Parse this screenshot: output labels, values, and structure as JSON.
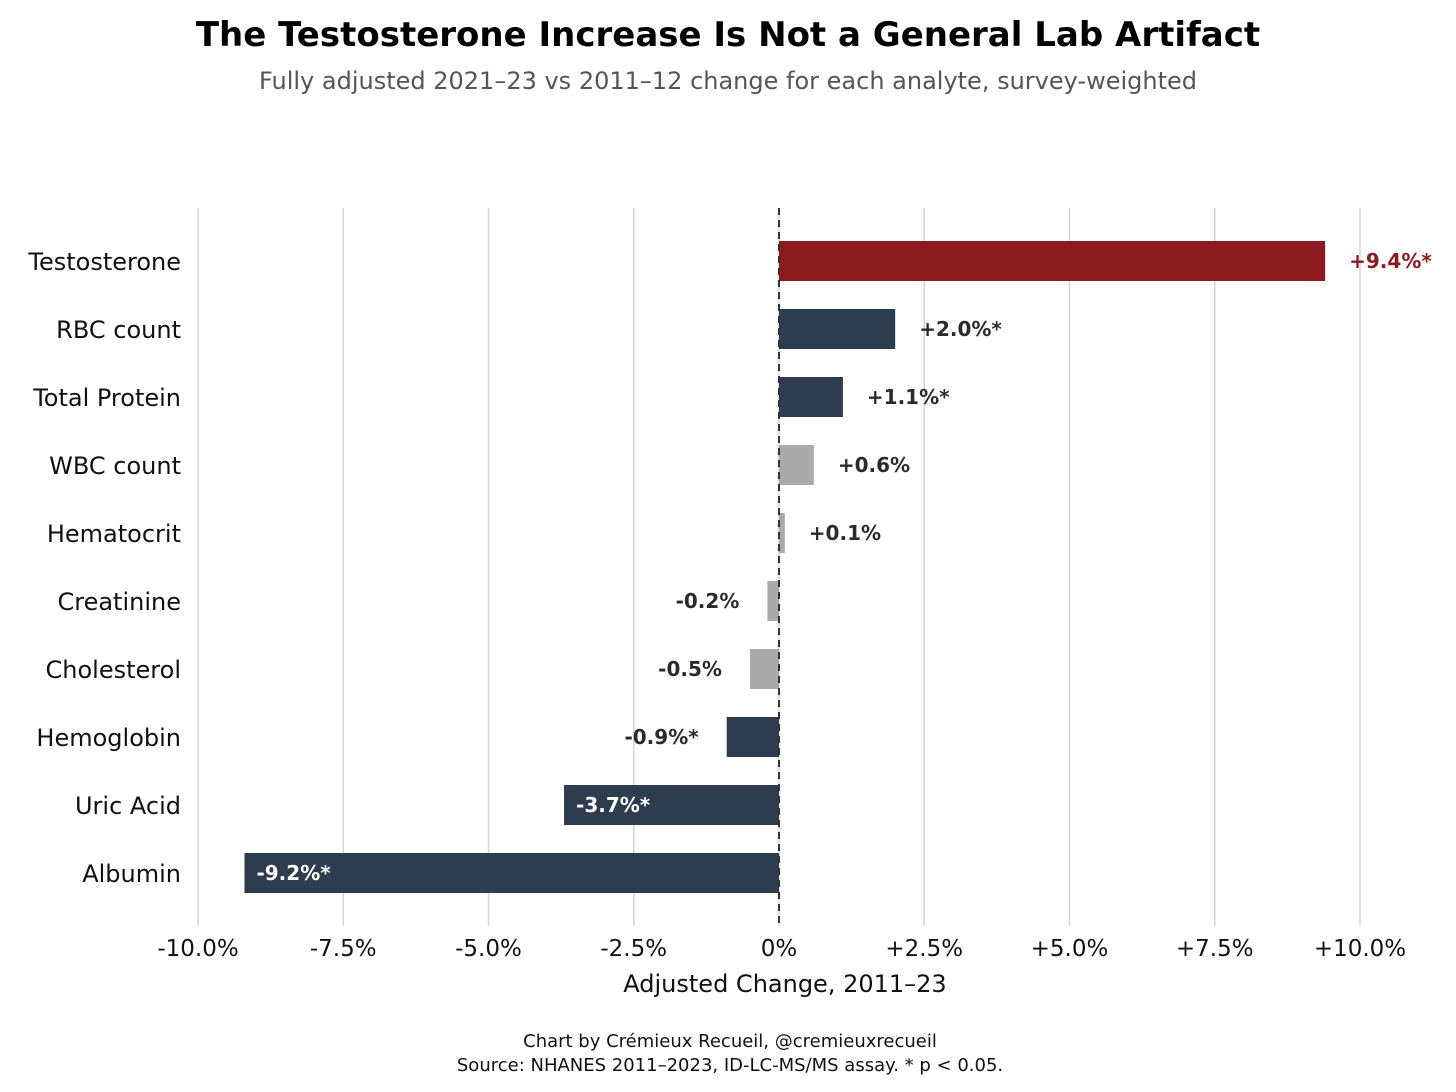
{
  "chart_data": {
    "type": "bar",
    "orientation": "horizontal",
    "title": "The Testosterone Increase Is Not a General Lab Artifact",
    "subtitle": "Fully adjusted 2021–23 vs 2011–12 change for each analyte, survey-weighted",
    "xlabel": "Adjusted Change, 2011–23",
    "ylabel": "",
    "xlim": [
      -10,
      10
    ],
    "xticks": [
      -10,
      -7.5,
      -5,
      -2.5,
      0,
      2.5,
      5,
      7.5,
      10
    ],
    "xtick_labels": [
      "-10.0%",
      "-7.5%",
      "-5.0%",
      "-2.5%",
      "0%",
      "+2.5%",
      "+5.0%",
      "+7.5%",
      "+10.0%"
    ],
    "grid": "vertical",
    "reference_line": {
      "x": 0,
      "style": "dashed"
    },
    "categories": [
      "Testosterone",
      "RBC count",
      "Total Protein",
      "WBC count",
      "Hematocrit",
      "Creatinine",
      "Cholesterol",
      "Hemoglobin",
      "Uric Acid",
      "Albumin"
    ],
    "values": [
      9.4,
      2.0,
      1.1,
      0.6,
      0.1,
      -0.2,
      -0.5,
      -0.9,
      -3.7,
      -9.2
    ],
    "value_labels": [
      "+9.4%*",
      "+2.0%*",
      "+1.1%*",
      "+0.6%",
      "+0.1%",
      "-0.2%",
      "-0.5%",
      "-0.9%*",
      "-3.7%*",
      "-9.2%*"
    ],
    "significant": [
      true,
      true,
      true,
      false,
      false,
      false,
      false,
      true,
      true,
      true
    ],
    "colors": {
      "highlight": "#8b1a1e",
      "significant": "#2d3c4f",
      "not_significant": "#aaaaaa",
      "inside_label": "#ffffff",
      "default_label": "#2b2b2b"
    },
    "footer": [
      "Chart by Crémieux Recueil, @cremieuxrecueil",
      "Source: NHANES 2011–2023, ID-LC-MS/MS assay. * p < 0.05."
    ]
  }
}
